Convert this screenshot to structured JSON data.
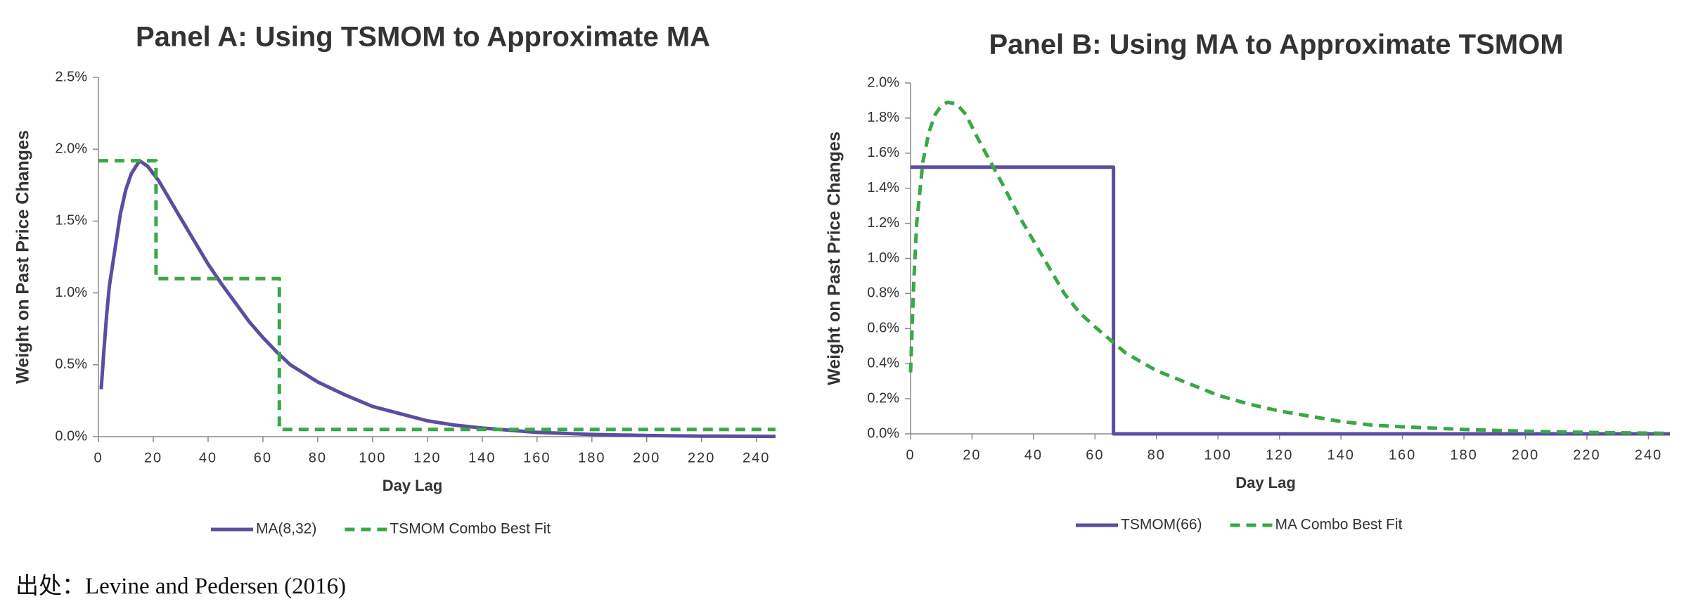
{
  "chart_data": [
    {
      "type": "line",
      "title": "Panel A: Using TSMOM to Approximate MA",
      "xlabel": "Day Lag",
      "ylabel": "Weight on Past Price Changes",
      "xlim": [
        0,
        247
      ],
      "xticks": [
        0,
        20,
        40,
        60,
        80,
        100,
        120,
        140,
        160,
        180,
        200,
        220,
        240
      ],
      "ylim": [
        0,
        2.5
      ],
      "yticks": [
        {
          "value": 0,
          "label": "0.0%"
        },
        {
          "value": 0.5,
          "label": "0.5%"
        },
        {
          "value": 1.0,
          "label": "1.0%"
        },
        {
          "value": 1.5,
          "label": "1.5%"
        },
        {
          "value": 2.0,
          "label": "2.0%"
        },
        {
          "value": 2.5,
          "label": "2.5%"
        }
      ],
      "series": [
        {
          "name": "MA(8,32)",
          "color": "#5b4ea0",
          "dashed": false,
          "x": [
            1,
            2,
            3,
            4,
            6,
            8,
            10,
            12,
            15,
            18,
            22,
            26,
            30,
            35,
            40,
            45,
            50,
            55,
            60,
            65,
            70,
            80,
            90,
            100,
            110,
            120,
            130,
            140,
            160,
            180,
            200,
            220,
            247
          ],
          "values": [
            0.33,
            0.6,
            0.85,
            1.05,
            1.3,
            1.55,
            1.72,
            1.83,
            1.92,
            1.88,
            1.78,
            1.65,
            1.52,
            1.36,
            1.2,
            1.06,
            0.93,
            0.8,
            0.69,
            0.59,
            0.5,
            0.38,
            0.29,
            0.21,
            0.16,
            0.11,
            0.08,
            0.06,
            0.03,
            0.015,
            0.008,
            0.004,
            0.002
          ]
        },
        {
          "name": "TSMOM Combo Best Fit",
          "color": "#3aa845",
          "dashed": true,
          "x": [
            0,
            21,
            21,
            66,
            66,
            247
          ],
          "values": [
            1.92,
            1.92,
            1.1,
            1.1,
            0.05,
            0.05
          ]
        }
      ]
    },
    {
      "type": "line",
      "title": "Panel B: Using MA to Approximate TSMOM",
      "xlabel": "Day Lag",
      "ylabel": "Weight on Past Price Changes",
      "xlim": [
        0,
        247
      ],
      "xticks": [
        0,
        20,
        40,
        60,
        80,
        100,
        120,
        140,
        160,
        180,
        200,
        220,
        240
      ],
      "ylim": [
        0,
        2.0
      ],
      "yticks": [
        {
          "value": 0,
          "label": "0.0%"
        },
        {
          "value": 0.2,
          "label": "0.2%"
        },
        {
          "value": 0.4,
          "label": "0.4%"
        },
        {
          "value": 0.6,
          "label": "0.6%"
        },
        {
          "value": 0.8,
          "label": "0.8%"
        },
        {
          "value": 1.0,
          "label": "1.0%"
        },
        {
          "value": 1.2,
          "label": "1.2%"
        },
        {
          "value": 1.4,
          "label": "1.4%"
        },
        {
          "value": 1.6,
          "label": "1.6%"
        },
        {
          "value": 1.8,
          "label": "1.8%"
        },
        {
          "value": 2.0,
          "label": "2.0%"
        }
      ],
      "series": [
        {
          "name": "TSMOM(66)",
          "color": "#5b4ea0",
          "dashed": false,
          "x": [
            0,
            66,
            66,
            247
          ],
          "values": [
            1.52,
            1.52,
            0,
            0
          ]
        },
        {
          "name": "MA Combo Best Fit",
          "color": "#3aa845",
          "dashed": true,
          "x": [
            0,
            1,
            2,
            4,
            6,
            8,
            10,
            12,
            15,
            18,
            22,
            26,
            30,
            35,
            40,
            45,
            50,
            55,
            60,
            66,
            70,
            80,
            90,
            100,
            110,
            120,
            130,
            140,
            150,
            160,
            180,
            200,
            220,
            247
          ],
          "values": [
            0.35,
            0.85,
            1.2,
            1.55,
            1.72,
            1.82,
            1.87,
            1.89,
            1.88,
            1.82,
            1.68,
            1.55,
            1.42,
            1.25,
            1.1,
            0.95,
            0.8,
            0.69,
            0.61,
            0.52,
            0.46,
            0.36,
            0.29,
            0.22,
            0.17,
            0.13,
            0.1,
            0.07,
            0.05,
            0.04,
            0.025,
            0.015,
            0.008,
            0.003
          ]
        }
      ]
    }
  ],
  "caption": "出处：Levine and Pedersen (2016)"
}
